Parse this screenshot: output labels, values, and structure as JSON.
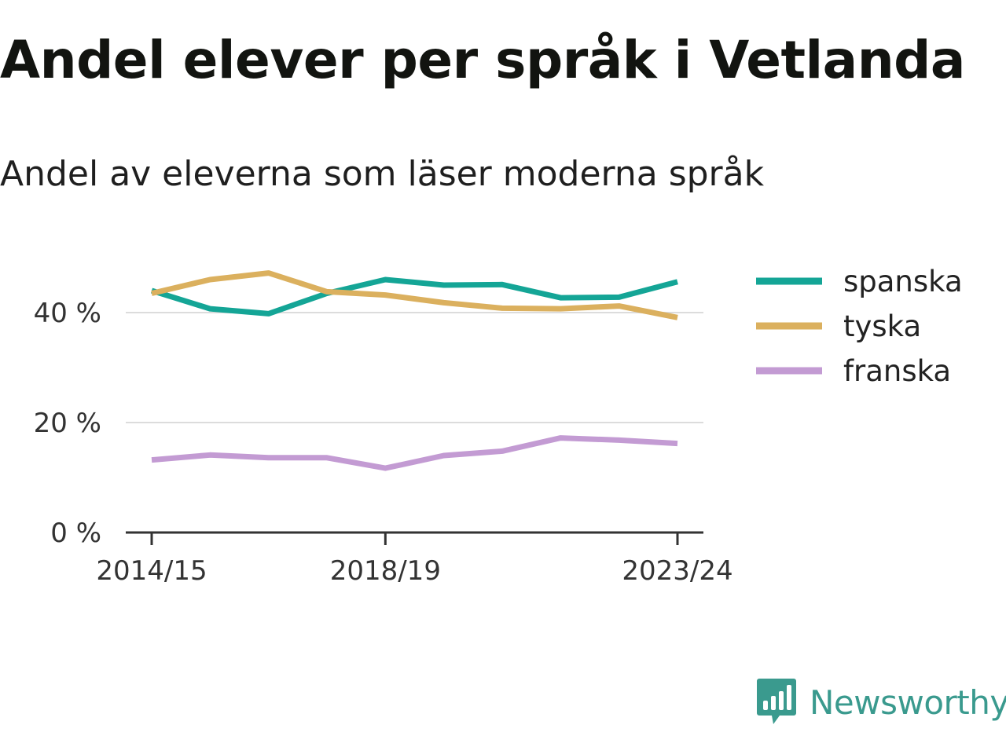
{
  "title": "Andel elever per språk i Vetlanda",
  "subtitle": "Andel av eleverna som läser moderna språk",
  "brand": {
    "name": "Newsworthy",
    "icon": "newsworthy-logo-icon",
    "color": "#3a9a8e"
  },
  "chart_data": {
    "type": "line",
    "x": [
      "2014/15",
      "2015/16",
      "2016/17",
      "2017/18",
      "2018/19",
      "2019/20",
      "2020/21",
      "2021/22",
      "2022/23",
      "2023/24"
    ],
    "x_tick_labels": [
      "2014/15",
      "2018/19",
      "2023/24"
    ],
    "y_ticks": [
      0,
      20,
      40
    ],
    "y_tick_labels": [
      "0 %",
      "20 %",
      "40 %"
    ],
    "ylim": [
      0,
      50
    ],
    "grid": true,
    "legend_position": "right",
    "series": [
      {
        "name": "spanska",
        "color": "#14a596",
        "values": [
          44,
          40.7,
          39.8,
          43.5,
          46,
          45,
          45.1,
          42.7,
          42.8,
          45.6
        ]
      },
      {
        "name": "tyska",
        "color": "#dbb05e",
        "values": [
          43.5,
          46,
          47.2,
          43.8,
          43.2,
          41.8,
          40.8,
          40.7,
          41.2,
          39.1
        ]
      },
      {
        "name": "franska",
        "color": "#c39bd3",
        "values": [
          13.2,
          14.1,
          13.6,
          13.6,
          11.7,
          14,
          14.8,
          17.2,
          16.8,
          16.2
        ]
      }
    ]
  }
}
